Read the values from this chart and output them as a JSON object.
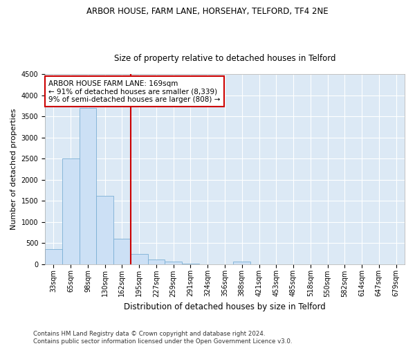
{
  "title": "ARBOR HOUSE, FARM LANE, HORSEHAY, TELFORD, TF4 2NE",
  "subtitle": "Size of property relative to detached houses in Telford",
  "xlabel": "Distribution of detached houses by size in Telford",
  "ylabel": "Number of detached properties",
  "categories": [
    "33sqm",
    "65sqm",
    "98sqm",
    "130sqm",
    "162sqm",
    "195sqm",
    "227sqm",
    "259sqm",
    "291sqm",
    "324sqm",
    "356sqm",
    "388sqm",
    "421sqm",
    "453sqm",
    "485sqm",
    "518sqm",
    "550sqm",
    "582sqm",
    "614sqm",
    "647sqm",
    "679sqm"
  ],
  "values": [
    350,
    2500,
    3700,
    1620,
    600,
    240,
    105,
    60,
    5,
    0,
    0,
    50,
    0,
    0,
    0,
    0,
    0,
    0,
    0,
    0,
    0
  ],
  "bar_color": "#cce0f5",
  "bar_edge_color": "#7bafd4",
  "vline_x": 4.5,
  "vline_color": "#cc0000",
  "annotation_line1": "ARBOR HOUSE FARM LANE: 169sqm",
  "annotation_line2": "← 91% of detached houses are smaller (8,339)",
  "annotation_line3": "9% of semi-detached houses are larger (808) →",
  "annotation_box_color": "#ffffff",
  "annotation_box_edge_color": "#cc0000",
  "ylim": [
    0,
    4500
  ],
  "yticks": [
    0,
    500,
    1000,
    1500,
    2000,
    2500,
    3000,
    3500,
    4000,
    4500
  ],
  "background_color": "#dce9f5",
  "footer_line1": "Contains HM Land Registry data © Crown copyright and database right 2024.",
  "footer_line2": "Contains public sector information licensed under the Open Government Licence v3.0.",
  "title_fontsize": 8.5,
  "subtitle_fontsize": 8.5,
  "xlabel_fontsize": 8.5,
  "ylabel_fontsize": 8,
  "tick_fontsize": 7,
  "annotation_fontsize": 7.5,
  "footer_fontsize": 6.2
}
